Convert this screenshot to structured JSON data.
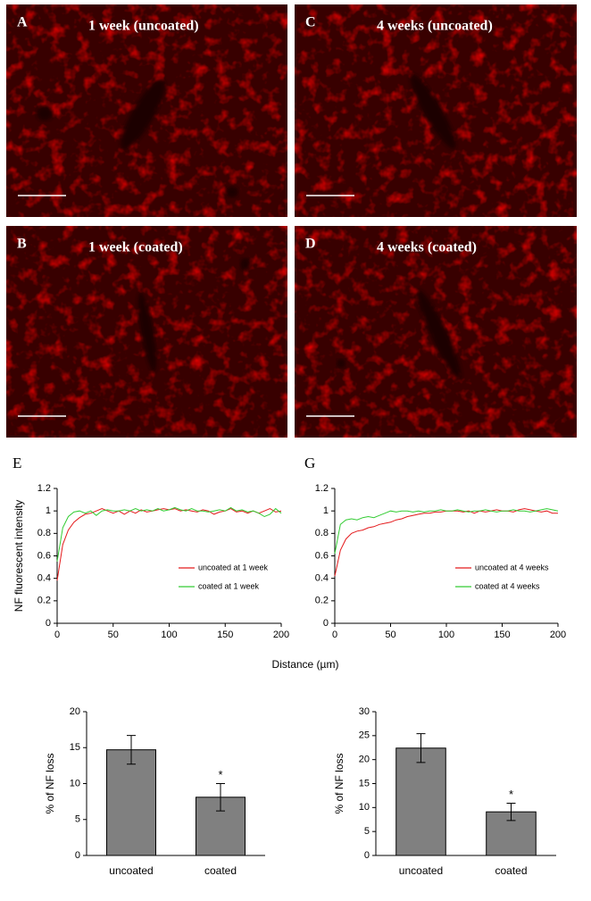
{
  "panels": [
    {
      "letter": "A",
      "caption": "1 week (uncoated)"
    },
    {
      "letter": "C",
      "caption": "4 weeks (uncoated)"
    },
    {
      "letter": "B",
      "caption": "1 week (coated)"
    },
    {
      "letter": "D",
      "caption": "4 weeks (coated)"
    }
  ],
  "chart_data": [
    {
      "type": "line",
      "label": "E",
      "ylabel": "NF fluorescent intensity",
      "xlabel": "Distance (µm)",
      "x": [
        0,
        5,
        10,
        15,
        20,
        25,
        30,
        35,
        40,
        45,
        50,
        55,
        60,
        65,
        70,
        75,
        80,
        85,
        90,
        95,
        100,
        105,
        110,
        115,
        120,
        125,
        130,
        135,
        140,
        145,
        150,
        155,
        160,
        165,
        170,
        175,
        180,
        185,
        190,
        195,
        200
      ],
      "xlim": [
        0,
        200
      ],
      "xticks": [
        0,
        50,
        100,
        150,
        200
      ],
      "ylim": [
        0,
        1.2
      ],
      "yticks": [
        0,
        0.2,
        0.4,
        0.6,
        0.8,
        1,
        1.2
      ],
      "legend": "lower right",
      "series": [
        {
          "name": "uncoated at 1 week",
          "color": "#e41a1c",
          "values": [
            0.38,
            0.7,
            0.83,
            0.9,
            0.94,
            0.97,
            0.98,
            1.0,
            1.02,
            1.0,
            0.98,
            1.0,
            0.97,
            1.0,
            0.98,
            1.01,
            0.99,
            1.0,
            1.01,
            1.02,
            1.01,
            1.02,
            1.0,
            1.01,
            1.0,
            0.99,
            1.01,
            1.0,
            0.97,
            0.99,
            1.0,
            1.02,
            0.99,
            1.0,
            0.98,
            1.0,
            0.98,
            1.0,
            1.02,
            0.99,
            1.0
          ]
        },
        {
          "name": "coated at 1 week",
          "color": "#33cc33",
          "values": [
            0.55,
            0.85,
            0.95,
            0.99,
            1.0,
            0.98,
            1.0,
            0.96,
            1.0,
            1.01,
            1.0,
            1.0,
            1.01,
            1.0,
            1.02,
            1.0,
            1.01,
            1.0,
            1.02,
            1.0,
            1.01,
            1.03,
            1.01,
            1.0,
            1.02,
            1.0,
            1.0,
            0.99,
            1.0,
            1.01,
            1.0,
            1.03,
            1.0,
            1.01,
            0.99,
            1.0,
            0.98,
            0.95,
            0.97,
            1.02,
            0.98
          ]
        }
      ]
    },
    {
      "type": "line",
      "label": "G",
      "x": [
        0,
        5,
        10,
        15,
        20,
        25,
        30,
        35,
        40,
        45,
        50,
        55,
        60,
        65,
        70,
        75,
        80,
        85,
        90,
        95,
        100,
        105,
        110,
        115,
        120,
        125,
        130,
        135,
        140,
        145,
        150,
        155,
        160,
        165,
        170,
        175,
        180,
        185,
        190,
        195,
        200
      ],
      "xlim": [
        0,
        200
      ],
      "xticks": [
        0,
        50,
        100,
        150,
        200
      ],
      "ylim": [
        0,
        1.2
      ],
      "yticks": [
        0,
        0.2,
        0.4,
        0.6,
        0.8,
        1,
        1.2
      ],
      "legend": "lower right",
      "series": [
        {
          "name": "uncoated at 4 weeks",
          "color": "#e41a1c",
          "values": [
            0.42,
            0.65,
            0.75,
            0.8,
            0.82,
            0.83,
            0.85,
            0.86,
            0.88,
            0.89,
            0.9,
            0.92,
            0.93,
            0.95,
            0.96,
            0.97,
            0.98,
            0.98,
            0.99,
            0.99,
            1.0,
            1.0,
            1.0,
            0.99,
            1.0,
            0.98,
            1.0,
            0.99,
            1.0,
            1.01,
            1.0,
            1.0,
            0.99,
            1.01,
            1.02,
            1.01,
            1.0,
            0.99,
            1.0,
            0.98,
            0.98
          ]
        },
        {
          "name": "coated at 4 weeks",
          "color": "#33cc33",
          "values": [
            0.62,
            0.88,
            0.92,
            0.93,
            0.92,
            0.94,
            0.95,
            0.94,
            0.96,
            0.98,
            1.0,
            0.99,
            1.0,
            1.0,
            0.99,
            1.0,
            0.99,
            1.0,
            1.0,
            1.01,
            1.0,
            1.0,
            1.01,
            1.0,
            0.99,
            1.0,
            1.0,
            1.01,
            1.0,
            0.99,
            1.0,
            1.0,
            1.01,
            1.0,
            1.0,
            0.99,
            1.0,
            1.01,
            1.02,
            1.01,
            1.0
          ]
        }
      ]
    },
    {
      "type": "bar",
      "ylabel": "% of NF loss",
      "categories": [
        "uncoated",
        "coated"
      ],
      "values": [
        14.7,
        8.1
      ],
      "errors": [
        2.0,
        1.9
      ],
      "color": "#808080",
      "annotation": "*",
      "ylim": [
        0,
        20
      ],
      "yticks": [
        0,
        5,
        10,
        15,
        20
      ]
    },
    {
      "type": "bar",
      "ylabel": "% of NF loss",
      "categories": [
        "uncoated",
        "coated"
      ],
      "values": [
        22.4,
        9.1
      ],
      "errors": [
        3.0,
        1.8
      ],
      "color": "#808080",
      "annotation": "*",
      "ylim": [
        0,
        30
      ],
      "yticks": [
        0,
        5,
        10,
        15,
        20,
        25,
        30
      ]
    }
  ]
}
